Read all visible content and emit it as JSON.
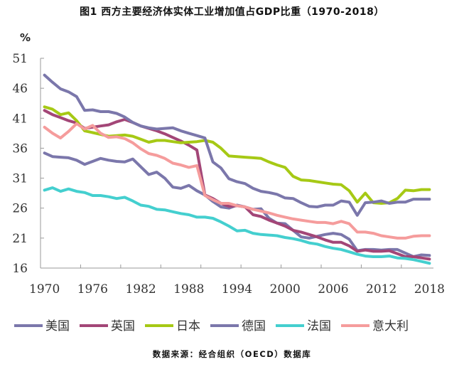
{
  "title": "图1   西方主要经济体实体工业增加值占GDP比重（1970-2018）",
  "source": "数据来源：经合组织（OECD）数据库",
  "chart_data": {
    "type": "line",
    "title": "图1   西方主要经济体实体工业增加值占GDP比重（1970-2018）",
    "xlabel": "",
    "ylabel": "%",
    "ylim": [
      16,
      51
    ],
    "yticks": [
      "16",
      "21",
      "26",
      "31",
      "36",
      "41",
      "46",
      "51"
    ],
    "xticks": [
      "1970",
      "1976",
      "1982",
      "1988",
      "1994",
      "2000",
      "2006",
      "2012",
      "2018"
    ],
    "grid": false,
    "legend_position": "bottom",
    "x": [
      1970,
      1971,
      1972,
      1973,
      1974,
      1975,
      1976,
      1977,
      1978,
      1979,
      1980,
      1981,
      1982,
      1983,
      1984,
      1985,
      1986,
      1987,
      1988,
      1989,
      1990,
      1991,
      1992,
      1993,
      1994,
      1995,
      1996,
      1997,
      1998,
      1999,
      2000,
      2001,
      2002,
      2003,
      2004,
      2005,
      2006,
      2007,
      2008,
      2009,
      2010,
      2011,
      2012,
      2013,
      2014,
      2015,
      2016,
      2017,
      2018
    ],
    "series": [
      {
        "name": "美国",
        "color": "#7b77ab",
        "values": [
          35.2,
          34.6,
          34.5,
          34.4,
          34.0,
          33.3,
          33.8,
          34.3,
          34.0,
          33.8,
          33.7,
          34.2,
          32.9,
          31.6,
          32.0,
          31.0,
          29.5,
          29.3,
          29.8,
          28.9,
          28.2,
          27.1,
          26.2,
          26.0,
          26.5,
          26.2,
          25.8,
          25.9,
          24.3,
          23.5,
          23.4,
          22.3,
          21.2,
          21.0,
          21.3,
          21.6,
          21.8,
          21.6,
          20.8,
          18.9,
          19.1,
          19.1,
          19.0,
          19.1,
          19.1,
          18.5,
          17.9,
          18.2,
          18.1
        ]
      },
      {
        "name": "英国",
        "color": "#a34677",
        "values": [
          42.3,
          41.6,
          41.1,
          40.6,
          40.2,
          39.3,
          39.5,
          39.7,
          39.9,
          40.4,
          40.8,
          40.3,
          39.7,
          39.3,
          38.9,
          38.4,
          37.8,
          37.2,
          36.5,
          35.7,
          28.2,
          27.6,
          26.8,
          26.3,
          26.4,
          26.2,
          24.9,
          24.6,
          24.0,
          23.5,
          23.0,
          22.3,
          22.0,
          21.6,
          21.2,
          20.7,
          20.3,
          20.3,
          19.7,
          18.8,
          19.0,
          18.8,
          18.8,
          18.9,
          18.4,
          17.9,
          17.9,
          17.7,
          17.5
        ]
      },
      {
        "name": "日本",
        "color": "#a6c915",
        "values": [
          42.9,
          42.5,
          41.6,
          41.9,
          40.6,
          38.9,
          38.6,
          38.3,
          38.0,
          38.1,
          38.2,
          38.0,
          37.5,
          37.0,
          37.3,
          37.3,
          37.1,
          36.9,
          37.0,
          37.1,
          37.3,
          37.0,
          36.0,
          34.7,
          34.6,
          34.5,
          34.4,
          34.3,
          33.7,
          33.2,
          32.8,
          31.3,
          30.7,
          30.6,
          30.4,
          30.2,
          30.0,
          29.9,
          28.9,
          27.0,
          28.5,
          26.9,
          26.8,
          26.9,
          27.6,
          29.0,
          28.9,
          29.1,
          29.1
        ]
      },
      {
        "name": "德国",
        "color": "#7b77ab",
        "values": [
          48.2,
          47.0,
          45.9,
          45.4,
          44.6,
          42.3,
          42.4,
          42.1,
          42.1,
          41.8,
          41.2,
          40.3,
          39.7,
          39.4,
          39.2,
          39.3,
          39.4,
          38.9,
          38.5,
          38.1,
          37.7,
          33.7,
          32.7,
          30.9,
          30.4,
          30.1,
          29.3,
          28.8,
          28.6,
          28.3,
          27.7,
          27.6,
          26.9,
          26.3,
          26.2,
          26.5,
          26.5,
          27.2,
          27.0,
          24.8,
          26.9,
          27.0,
          27.2,
          26.8,
          27.0,
          27.0,
          27.5,
          27.5,
          27.5
        ]
      },
      {
        "name": "法国",
        "color": "#44cfcf",
        "values": [
          29.0,
          29.4,
          28.8,
          29.2,
          28.8,
          28.6,
          28.1,
          28.1,
          27.9,
          27.6,
          27.8,
          27.2,
          26.5,
          26.3,
          25.8,
          25.7,
          25.4,
          25.1,
          24.9,
          24.5,
          24.5,
          24.3,
          23.7,
          23.0,
          22.2,
          22.3,
          21.8,
          21.6,
          21.5,
          21.4,
          21.1,
          20.9,
          20.6,
          20.2,
          20.0,
          19.6,
          19.3,
          19.1,
          18.7,
          18.3,
          18.0,
          17.9,
          17.9,
          18.0,
          17.7,
          17.6,
          17.4,
          17.1,
          16.8
        ]
      },
      {
        "name": "意大利",
        "color": "#f59c9c",
        "values": [
          39.5,
          38.5,
          37.7,
          38.8,
          40.1,
          39.2,
          39.8,
          38.5,
          37.8,
          37.9,
          37.6,
          36.9,
          35.9,
          35.1,
          34.8,
          34.3,
          33.5,
          33.2,
          32.8,
          33.1,
          28.1,
          27.4,
          26.8,
          26.8,
          26.4,
          26.2,
          25.8,
          25.5,
          25.2,
          24.8,
          24.5,
          24.2,
          24.0,
          23.8,
          23.6,
          23.6,
          23.4,
          23.8,
          23.4,
          22.0,
          22.0,
          21.8,
          21.4,
          21.2,
          21.0,
          21.0,
          21.3,
          21.4,
          21.4
        ]
      }
    ]
  }
}
